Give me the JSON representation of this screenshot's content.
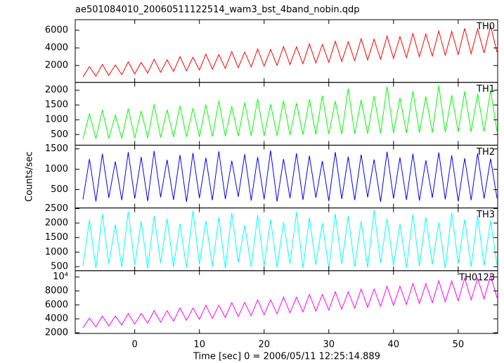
{
  "chart_data": {
    "type": "line",
    "title": "ae501084010_20060511122514_wam3_bst_4band_nobin.qdp",
    "x_label": "Time [sec] 0 = 2006/05/11 12:25:14.889",
    "y_label": "Counts/sec",
    "xlim": [
      -9.2,
      56.1
    ],
    "xticks": [
      0,
      10,
      20,
      30,
      40,
      50
    ],
    "x": [
      -8,
      -7,
      -6,
      -5,
      -4,
      -3,
      -2,
      -1,
      0,
      1,
      2,
      3,
      4,
      5,
      6,
      7,
      8,
      9,
      10,
      11,
      12,
      13,
      14,
      15,
      16,
      17,
      18,
      19,
      20,
      21,
      22,
      23,
      24,
      25,
      26,
      27,
      28,
      29,
      30,
      31,
      32,
      33,
      34,
      35,
      36,
      37,
      38,
      39,
      40,
      41,
      42,
      43,
      44,
      45,
      46,
      47,
      48,
      49,
      50,
      51,
      52,
      53,
      54,
      55,
      56
    ],
    "series": [
      {
        "name": "TH0",
        "color": "#ff0000",
        "ylim": [
          80,
          7200
        ],
        "yticks": [
          2000,
          4000,
          6000
        ],
        "values": [
          700,
          1870,
          790,
          2120,
          880,
          2070,
          960,
          2410,
          1050,
          2360,
          1140,
          2700,
          1230,
          2650,
          1320,
          3000,
          1400,
          2940,
          1490,
          3290,
          1580,
          3230,
          1670,
          3580,
          1760,
          3530,
          1840,
          3870,
          1930,
          3820,
          2020,
          4160,
          2110,
          4110,
          2200,
          4460,
          2280,
          4400,
          2370,
          4750,
          2460,
          4690,
          2550,
          5040,
          2640,
          4990,
          2720,
          5330,
          2810,
          5280,
          2900,
          5620,
          2990,
          5570,
          3080,
          5920,
          3160,
          5860,
          3250,
          6210,
          3340,
          6150,
          3430,
          6500,
          3520
        ]
      },
      {
        "name": "TH1",
        "color": "#00ff00",
        "ylim": [
          140,
          2260
        ],
        "yticks": [
          500,
          1000,
          1500,
          2000
        ],
        "values": [
          350,
          1210,
          360,
          1330,
          370,
          1160,
          370,
          1380,
          380,
          1300,
          390,
          1520,
          400,
          1340,
          410,
          1470,
          420,
          1390,
          420,
          1510,
          430,
          1630,
          440,
          1450,
          450,
          1580,
          460,
          1700,
          460,
          1520,
          470,
          1640,
          480,
          1560,
          490,
          1690,
          500,
          1810,
          510,
          1630,
          510,
          2050,
          520,
          1670,
          530,
          1800,
          540,
          2120,
          550,
          1740,
          550,
          1960,
          560,
          1780,
          570,
          2150,
          580,
          1830,
          590,
          1950,
          590,
          1870,
          600,
          1990,
          610
        ]
      },
      {
        "name": "TH2",
        "color": "#0000ff",
        "ylim": [
          50,
          1590
        ],
        "yticks": [
          500,
          1000,
          1500
        ],
        "values": [
          260,
          1250,
          210,
          1380,
          300,
          1190,
          240,
          1420,
          280,
          1300,
          220,
          1450,
          310,
          1230,
          250,
          1350,
          200,
          1400,
          290,
          1280,
          240,
          1440,
          270,
          1210,
          320,
          1370,
          230,
          1300,
          260,
          1460,
          210,
          1250,
          290,
          1390,
          250,
          1330,
          300,
          1200,
          220,
          1420,
          270,
          1310,
          240,
          1360,
          310,
          1240,
          200,
          1430,
          280,
          1290,
          250,
          1380,
          230,
          1220,
          300,
          1410,
          260,
          1340,
          210,
          1270,
          240,
          1390,
          280,
          1260,
          290
        ]
      },
      {
        "name": "TH3",
        "color": "#00ffff",
        "ylim": [
          360,
          2520
        ],
        "yticks": [
          500,
          1000,
          1500,
          2000,
          2500
        ],
        "values": [
          520,
          2100,
          450,
          2300,
          600,
          1950,
          480,
          2400,
          550,
          2050,
          430,
          2250,
          620,
          2150,
          500,
          1980,
          460,
          2420,
          580,
          2080,
          510,
          2200,
          440,
          2350,
          640,
          1920,
          490,
          2280,
          530,
          2120,
          470,
          2030,
          600,
          2380,
          450,
          2180,
          560,
          2000,
          420,
          2320,
          590,
          2240,
          500,
          2060,
          470,
          2440,
          620,
          2150,
          540,
          1960,
          460,
          2300,
          510,
          2210,
          580,
          2020,
          440,
          2360,
          600,
          2120,
          490,
          2260,
          530,
          2080,
          560
        ]
      },
      {
        "name": "TH0123",
        "color": "#ff00ff",
        "ylim": [
          1900,
          10900
        ],
        "yticks": [
          2000,
          4000,
          6000,
          8000,
          {
            "value": 10000,
            "label": "10⁴"
          }
        ],
        "values": [
          2700,
          4100,
          2830,
          4390,
          2970,
          4390,
          3100,
          4780,
          3240,
          4770,
          3370,
          5170,
          3500,
          5160,
          3640,
          5560,
          3770,
          5550,
          3910,
          5940,
          4040,
          5940,
          4170,
          6330,
          4310,
          6330,
          4440,
          6720,
          4580,
          6710,
          4710,
          7110,
          4840,
          7100,
          4980,
          7500,
          5110,
          7490,
          5250,
          7880,
          5380,
          7880,
          5510,
          8270,
          5650,
          8270,
          5780,
          8660,
          5920,
          8650,
          6050,
          9050,
          6180,
          9040,
          6320,
          9440,
          6450,
          9430,
          6590,
          9820,
          6720,
          9820,
          6850,
          10210,
          6990
        ]
      }
    ]
  }
}
